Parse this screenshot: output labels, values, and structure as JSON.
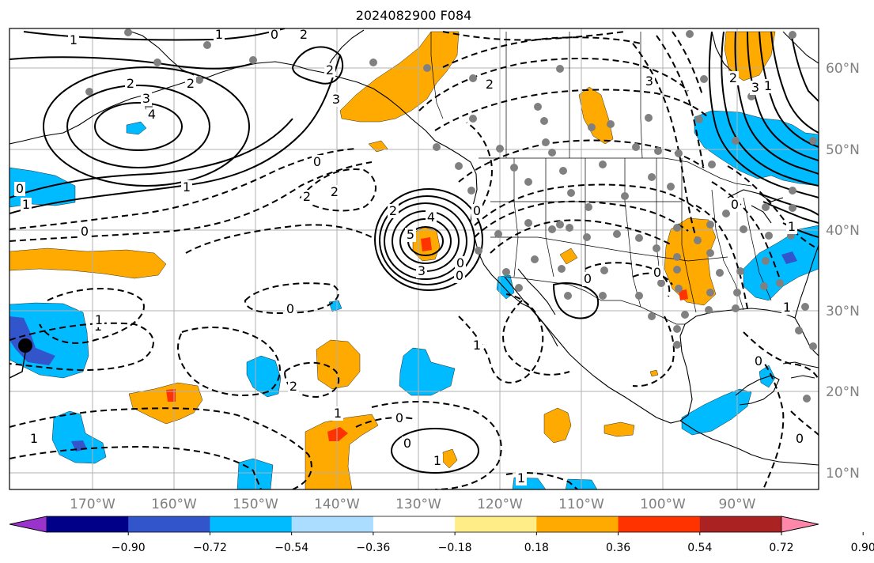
{
  "title": "2024082900 F084",
  "longitude_labels": [
    "170°W",
    "160°W",
    "150°W",
    "140°W",
    "130°W",
    "120°W",
    "110°W",
    "100°W",
    "90°W"
  ],
  "latitude_labels": [
    "60°N",
    "50°N",
    "40°N",
    "30°N",
    "20°N",
    "10°N"
  ],
  "colorbar": {
    "tick_labels": [
      "−0.90",
      "−0.72",
      "−0.54",
      "−0.36",
      "−0.18",
      "0.18",
      "0.36",
      "0.54",
      "0.72",
      "0.90"
    ],
    "colors": [
      "#9933cc",
      "#000088",
      "#3355cc",
      "#00bbff",
      "#aaddff",
      "#ffffff",
      "#ffee88",
      "#ffaa00",
      "#ff3300",
      "#aa2222",
      "#ff88aa"
    ]
  },
  "contour_labels": [
    "1",
    "1",
    "2",
    "2",
    "2",
    "3",
    "3",
    "4",
    "2",
    "1",
    "0",
    "0",
    "1",
    "1",
    "0",
    "0",
    "2",
    "2",
    "4",
    "5",
    "3",
    "2",
    "0",
    "0",
    "1",
    "1",
    "0",
    "1",
    "0",
    "2",
    "1",
    "0",
    "0",
    "1",
    "1",
    "0",
    "0",
    "1",
    "2",
    "3",
    "3",
    "2",
    "0",
    "0",
    "1",
    "0",
    "0",
    "1"
  ],
  "colors": {
    "positive_fill": "#ffaa00",
    "strong_positive_fill": "#ff3300",
    "negative_fill": "#00bbff",
    "strong_negative_fill": "#3355cc",
    "station_dot": "#808080",
    "grid": "#b0b0b0"
  }
}
